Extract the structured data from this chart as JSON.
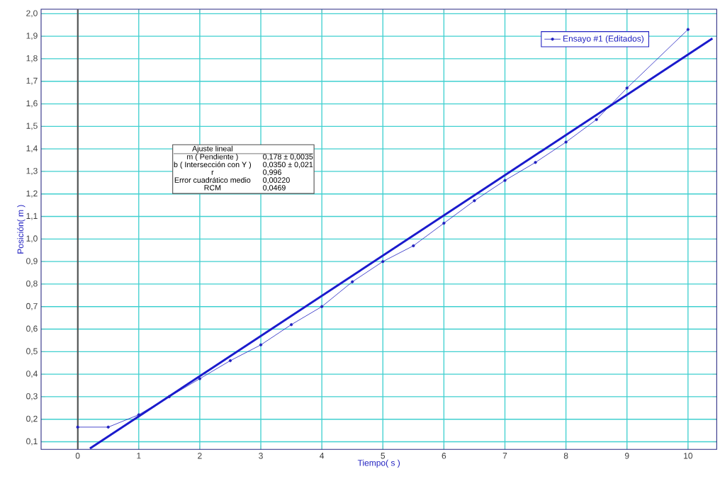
{
  "chart_data": {
    "type": "line",
    "xlabel": "Tiempo( s )",
    "ylabel": "Posición( m )",
    "xlim": [
      -0.6,
      10.47
    ],
    "ylim": [
      0.066,
      2.02
    ],
    "xticks": [
      0,
      1,
      2,
      3,
      4,
      5,
      6,
      7,
      8,
      9,
      10
    ],
    "yticks": [
      {
        "value": 0.1,
        "label": "0,1"
      },
      {
        "value": 0.2,
        "label": "0,2"
      },
      {
        "value": 0.3,
        "label": "0,3"
      },
      {
        "value": 0.4,
        "label": "0,4"
      },
      {
        "value": 0.5,
        "label": "0,5"
      },
      {
        "value": 0.6,
        "label": "0,6"
      },
      {
        "value": 0.7,
        "label": "0,7"
      },
      {
        "value": 0.8,
        "label": "0,8"
      },
      {
        "value": 0.9,
        "label": "0,9"
      },
      {
        "value": 1.0,
        "label": "1,0"
      },
      {
        "value": 1.1,
        "label": "1,1"
      },
      {
        "value": 1.2,
        "label": "1,2"
      },
      {
        "value": 1.3,
        "label": "1,3"
      },
      {
        "value": 1.4,
        "label": "1,4"
      },
      {
        "value": 1.5,
        "label": "1,5"
      },
      {
        "value": 1.6,
        "label": "1,6"
      },
      {
        "value": 1.7,
        "label": "1,7"
      },
      {
        "value": 1.8,
        "label": "1,8"
      },
      {
        "value": 1.9,
        "label": "1,9"
      },
      {
        "value": 2.0,
        "label": "2,0"
      }
    ],
    "grid": true,
    "legend": "top right",
    "series": [
      {
        "name": "Ensayo #1 (Editados)",
        "color": "#2020c0",
        "marker": "circle",
        "x": [
          0,
          0.5,
          1,
          1.5,
          2,
          2.5,
          3,
          3.5,
          4,
          4.5,
          5,
          5.5,
          6,
          6.5,
          7,
          7.5,
          8,
          8.5,
          9,
          10
        ],
        "values": [
          0.165,
          0.165,
          0.22,
          0.3,
          0.38,
          0.46,
          0.53,
          0.62,
          0.7,
          0.81,
          0.9,
          0.97,
          1.07,
          1.17,
          1.26,
          1.34,
          1.43,
          1.53,
          1.67,
          1.93
        ]
      },
      {
        "color": "#1a1acc",
        "marker": "none",
        "x": [
          0.2,
          10.4
        ],
        "values": [
          0.07,
          1.89
        ]
      }
    ],
    "ref_lines": [
      {
        "axis": "x",
        "value": 0,
        "color": "#555555"
      }
    ],
    "annotations": [
      "Ajuste lineal",
      "m ( Pendiente )",
      "0,178 ± 0,0035",
      "b ( Intersección con Y )",
      "0,0350 ± 0,021",
      "r",
      "0,996",
      "Error cuadrático medio",
      "0,00220",
      "RCM",
      "0,0469"
    ]
  }
}
